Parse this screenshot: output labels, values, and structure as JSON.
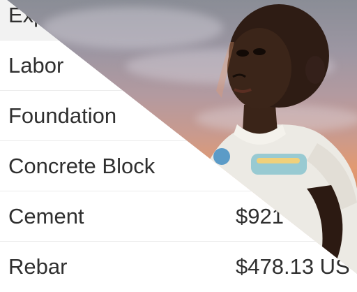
{
  "expenses": {
    "rows": [
      {
        "label": "Exp",
        "amount": ""
      },
      {
        "label": "Labor",
        "amount": ""
      },
      {
        "label": "Foundation",
        "amount": ""
      },
      {
        "label": "Concrete Block",
        "amount": ""
      },
      {
        "label": "Cement",
        "amount": "$921"
      },
      {
        "label": "Rebar",
        "amount": "$478.13 US"
      }
    ]
  },
  "photo": {
    "subject": "child-photo"
  }
}
